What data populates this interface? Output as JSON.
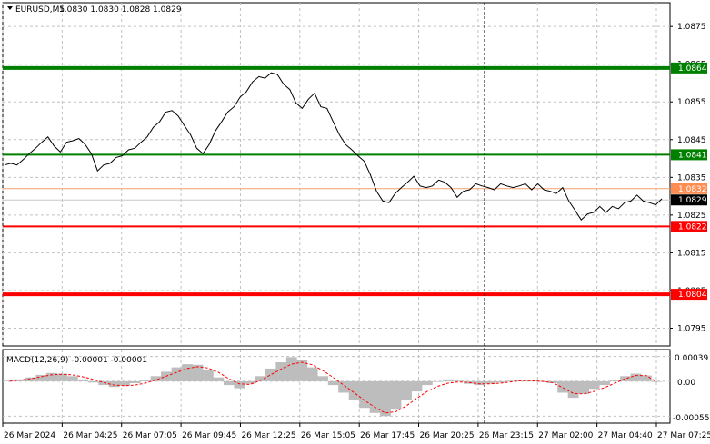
{
  "header": {
    "symbol": "EURUSD,M5",
    "ohlc": "1.0830 1.0830 1.0828 1.0829"
  },
  "indicator": {
    "title": "MACD(12,26,9) -0.00001 -0.00001",
    "axis_labels": [
      "0.00039",
      "0.00",
      "-0.00055"
    ]
  },
  "colors": {
    "background": "#ffffff",
    "grid": "#c0c0c0",
    "price_line": "#000000",
    "support_line": "#ff0000",
    "resistance_line": "#008000",
    "signal_line": "#ff0000",
    "histogram": "#bdbdbd",
    "cursor_line": "#000000"
  },
  "chart_data": [
    {
      "type": "line",
      "title": "EURUSD,M5",
      "y_ticks": [
        "1.0875",
        "1.0865",
        "1.0855",
        "1.0845",
        "1.0835",
        "1.0825",
        "1.0815",
        "1.0805",
        "1.0795"
      ],
      "x_ticks": [
        "26 Mar 2024",
        "26 Mar 04:25",
        "26 Mar 07:05",
        "26 Mar 09:45",
        "26 Mar 12:25",
        "26 Mar 15:05",
        "26 Mar 17:45",
        "26 Mar 20:25",
        "26 Mar 23:15",
        "27 Mar 02:00",
        "27 Mar 04:40",
        "27 Mar 07:25"
      ],
      "ylim": [
        1.07903,
        1.08813
      ],
      "grid": true,
      "series": [
        {
          "values": [
            1.0838,
            1.0839,
            1.0838,
            1.084,
            1.0841,
            1.0843,
            1.0844,
            1.0846,
            1.0843,
            1.0842,
            1.0844,
            1.0845,
            1.0845,
            1.0844,
            1.0841,
            1.0837,
            1.0838,
            1.0839,
            1.084,
            1.0841,
            1.0842,
            1.0843,
            1.0844,
            1.0846,
            1.0848,
            1.085,
            1.0852,
            1.0853,
            1.0851,
            1.0849,
            1.0846,
            1.0843,
            1.0841,
            1.0844,
            1.0847,
            1.085,
            1.0852,
            1.0854,
            1.0856,
            1.0858,
            1.086,
            1.0862,
            1.0861,
            1.0863,
            1.0862,
            1.086,
            1.0858,
            1.0855,
            1.0853,
            1.0856,
            1.0857,
            1.0854,
            1.0853,
            1.085,
            1.0846,
            1.0844,
            1.0842,
            1.0841,
            1.0839,
            1.0836,
            1.0831,
            1.0829,
            1.0828,
            1.0831,
            1.0832,
            1.0834,
            1.0835,
            1.0833,
            1.0832,
            1.0833,
            1.0834,
            1.0834,
            1.0832,
            1.083,
            1.0831,
            1.0832,
            1.0833,
            1.0833,
            1.0832,
            1.0832,
            1.0833,
            1.0833,
            1.0832,
            1.0833,
            1.0833,
            1.0832,
            1.0833,
            1.0832,
            1.0831,
            1.0831,
            1.0832,
            1.0829,
            1.0826,
            1.0824,
            1.0825,
            1.0826,
            1.0827,
            1.0826,
            1.0827,
            1.0827,
            1.0828,
            1.0829,
            1.083,
            1.0829,
            1.0828,
            1.0828,
            1.0829
          ]
        }
      ],
      "horizontal_levels": [
        {
          "value": 1.0864,
          "label": "1.0864",
          "kind": "resistance"
        },
        {
          "value": 1.0841,
          "label": "1.0841",
          "kind": "resistance"
        },
        {
          "value": 1.0832,
          "label": "1.0832",
          "kind": "reference"
        },
        {
          "value": 1.0829,
          "label": "1.0829",
          "kind": "current"
        },
        {
          "value": 1.0822,
          "label": "1.0822",
          "kind": "support"
        },
        {
          "value": 1.0804,
          "label": "1.0804",
          "kind": "support"
        }
      ]
    },
    {
      "type": "bar",
      "title": "MACD(12,26,9) -0.00001 -0.00001",
      "ylim": [
        -0.00066,
        0.0005
      ],
      "values": [
        1e-05,
        3e-05,
        6e-05,
        0.0001,
        0.00013,
        0.00012,
        8e-05,
        3e-05,
        -2e-05,
        -6e-05,
        -9e-05,
        -7e-05,
        -3e-05,
        2e-05,
        8e-05,
        0.00015,
        0.00022,
        0.00027,
        0.00026,
        0.00018,
        6e-05,
        -6e-05,
        -0.00011,
        -4e-05,
        8e-05,
        0.0002,
        0.0003,
        0.00038,
        0.00033,
        0.00022,
        8e-05,
        -6e-05,
        -0.00018,
        -0.0003,
        -0.00042,
        -0.0005,
        -0.00055,
        -0.00045,
        -0.0003,
        -0.00016,
        -6e-05,
        -1e-05,
        3e-05,
        1e-05,
        -4e-05,
        -6e-05,
        -4e-05,
        -2e-05,
        1e-05,
        2e-05,
        1e-05,
        -1e-05,
        -3e-05,
        -0.00018,
        -0.00026,
        -0.0002,
        -0.00012,
        -6e-05,
        2e-05,
        8e-05,
        0.00012,
        9e-05,
        -1e-05
      ],
      "signal": [
        0.0,
        2e-05,
        4e-05,
        7e-05,
        0.0001,
        0.00011,
        0.0001,
        7e-05,
        3e-05,
        -2e-05,
        -6e-05,
        -7e-05,
        -6e-05,
        -3e-05,
        2e-05,
        8e-05,
        0.00014,
        0.0002,
        0.00023,
        0.00021,
        0.00014,
        4e-05,
        -4e-05,
        -5e-05,
        1e-05,
        0.0001,
        0.00019,
        0.00027,
        0.0003,
        0.00026,
        0.00017,
        6e-05,
        -6e-05,
        -0.00018,
        -0.0003,
        -0.00041,
        -0.0005,
        -0.00048,
        -0.00039,
        -0.00027,
        -0.00016,
        -8e-05,
        -3e-05,
        -1e-05,
        -2e-05,
        -4e-05,
        -4e-05,
        -3e-05,
        -1e-05,
        1e-05,
        1e-05,
        0.0,
        -2e-05,
        -0.0001,
        -0.00019,
        -0.0002,
        -0.00016,
        -0.0001,
        -3e-05,
        4e-05,
        9e-05,
        9e-05,
        -1e-05
      ]
    }
  ]
}
